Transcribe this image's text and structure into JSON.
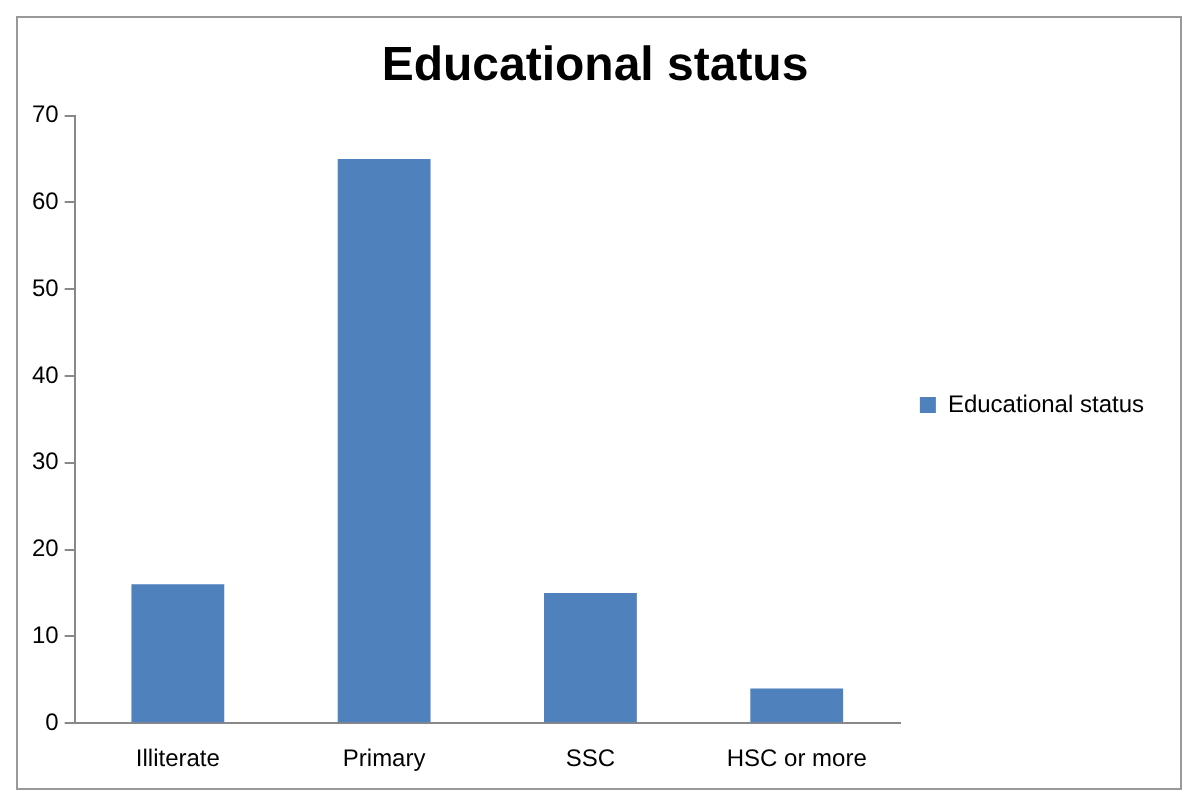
{
  "chart_data": {
    "type": "bar",
    "title": "Educational status",
    "categories": [
      "Illiterate",
      "Primary",
      "SSC",
      "HSC or more"
    ],
    "series": [
      {
        "name": "Educational status",
        "color": "#4f81bd",
        "values": [
          16,
          65,
          15,
          4
        ]
      }
    ],
    "ylim": [
      0,
      70
    ],
    "yticks": [
      0,
      10,
      20,
      30,
      40,
      50,
      60,
      70
    ],
    "grid": false,
    "legend": "right"
  }
}
